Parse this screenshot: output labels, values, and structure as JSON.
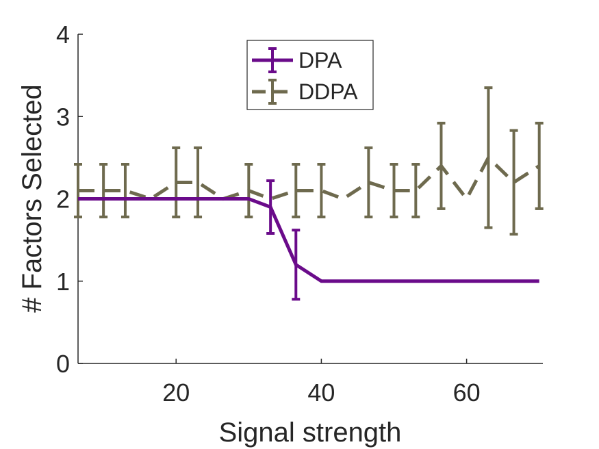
{
  "chart_data": {
    "type": "line",
    "xlabel": "Signal strength",
    "ylabel": "# Factors Selected",
    "xlim": [
      6.5,
      70.5
    ],
    "ylim": [
      0,
      4
    ],
    "xticks": [
      20,
      40,
      60
    ],
    "yticks": [
      0,
      1,
      2,
      3,
      4
    ],
    "grid": false,
    "legend_position": "top-center",
    "series": [
      {
        "name": "DPA",
        "color": "#6a0b8a",
        "style": "solid",
        "x": [
          6.5,
          10,
          13,
          16.5,
          20,
          23,
          26.5,
          30,
          33,
          36.5,
          40,
          43,
          46.5,
          50,
          53,
          56.5,
          60,
          63,
          66.5,
          70
        ],
        "y": [
          2,
          2,
          2,
          2,
          2,
          2,
          2,
          2,
          1.9,
          1.2,
          1,
          1,
          1,
          1,
          1,
          1,
          1,
          1,
          1,
          1
        ],
        "err": [
          0,
          0,
          0,
          0,
          0,
          0,
          0,
          0,
          0.32,
          0.42,
          0,
          0,
          0,
          0,
          0,
          0,
          0,
          0,
          0,
          0
        ]
      },
      {
        "name": "DDPA",
        "color": "#6e6a4e",
        "style": "dashed",
        "x": [
          6.5,
          10,
          13,
          16.5,
          20,
          23,
          26.5,
          30,
          33,
          36.5,
          40,
          43,
          46.5,
          50,
          53,
          56.5,
          60,
          63,
          66.5,
          70
        ],
        "y": [
          2.1,
          2.1,
          2.1,
          2.0,
          2.2,
          2.2,
          2.0,
          2.1,
          2.0,
          2.1,
          2.1,
          2.0,
          2.2,
          2.1,
          2.1,
          2.4,
          2.0,
          2.5,
          2.2,
          2.4
        ],
        "err": [
          0.32,
          0.32,
          0.32,
          0,
          0.42,
          0.42,
          0,
          0.32,
          0,
          0.32,
          0.32,
          0,
          0.42,
          0.32,
          0.32,
          0.52,
          0,
          0.85,
          0.63,
          0.52
        ]
      }
    ]
  }
}
